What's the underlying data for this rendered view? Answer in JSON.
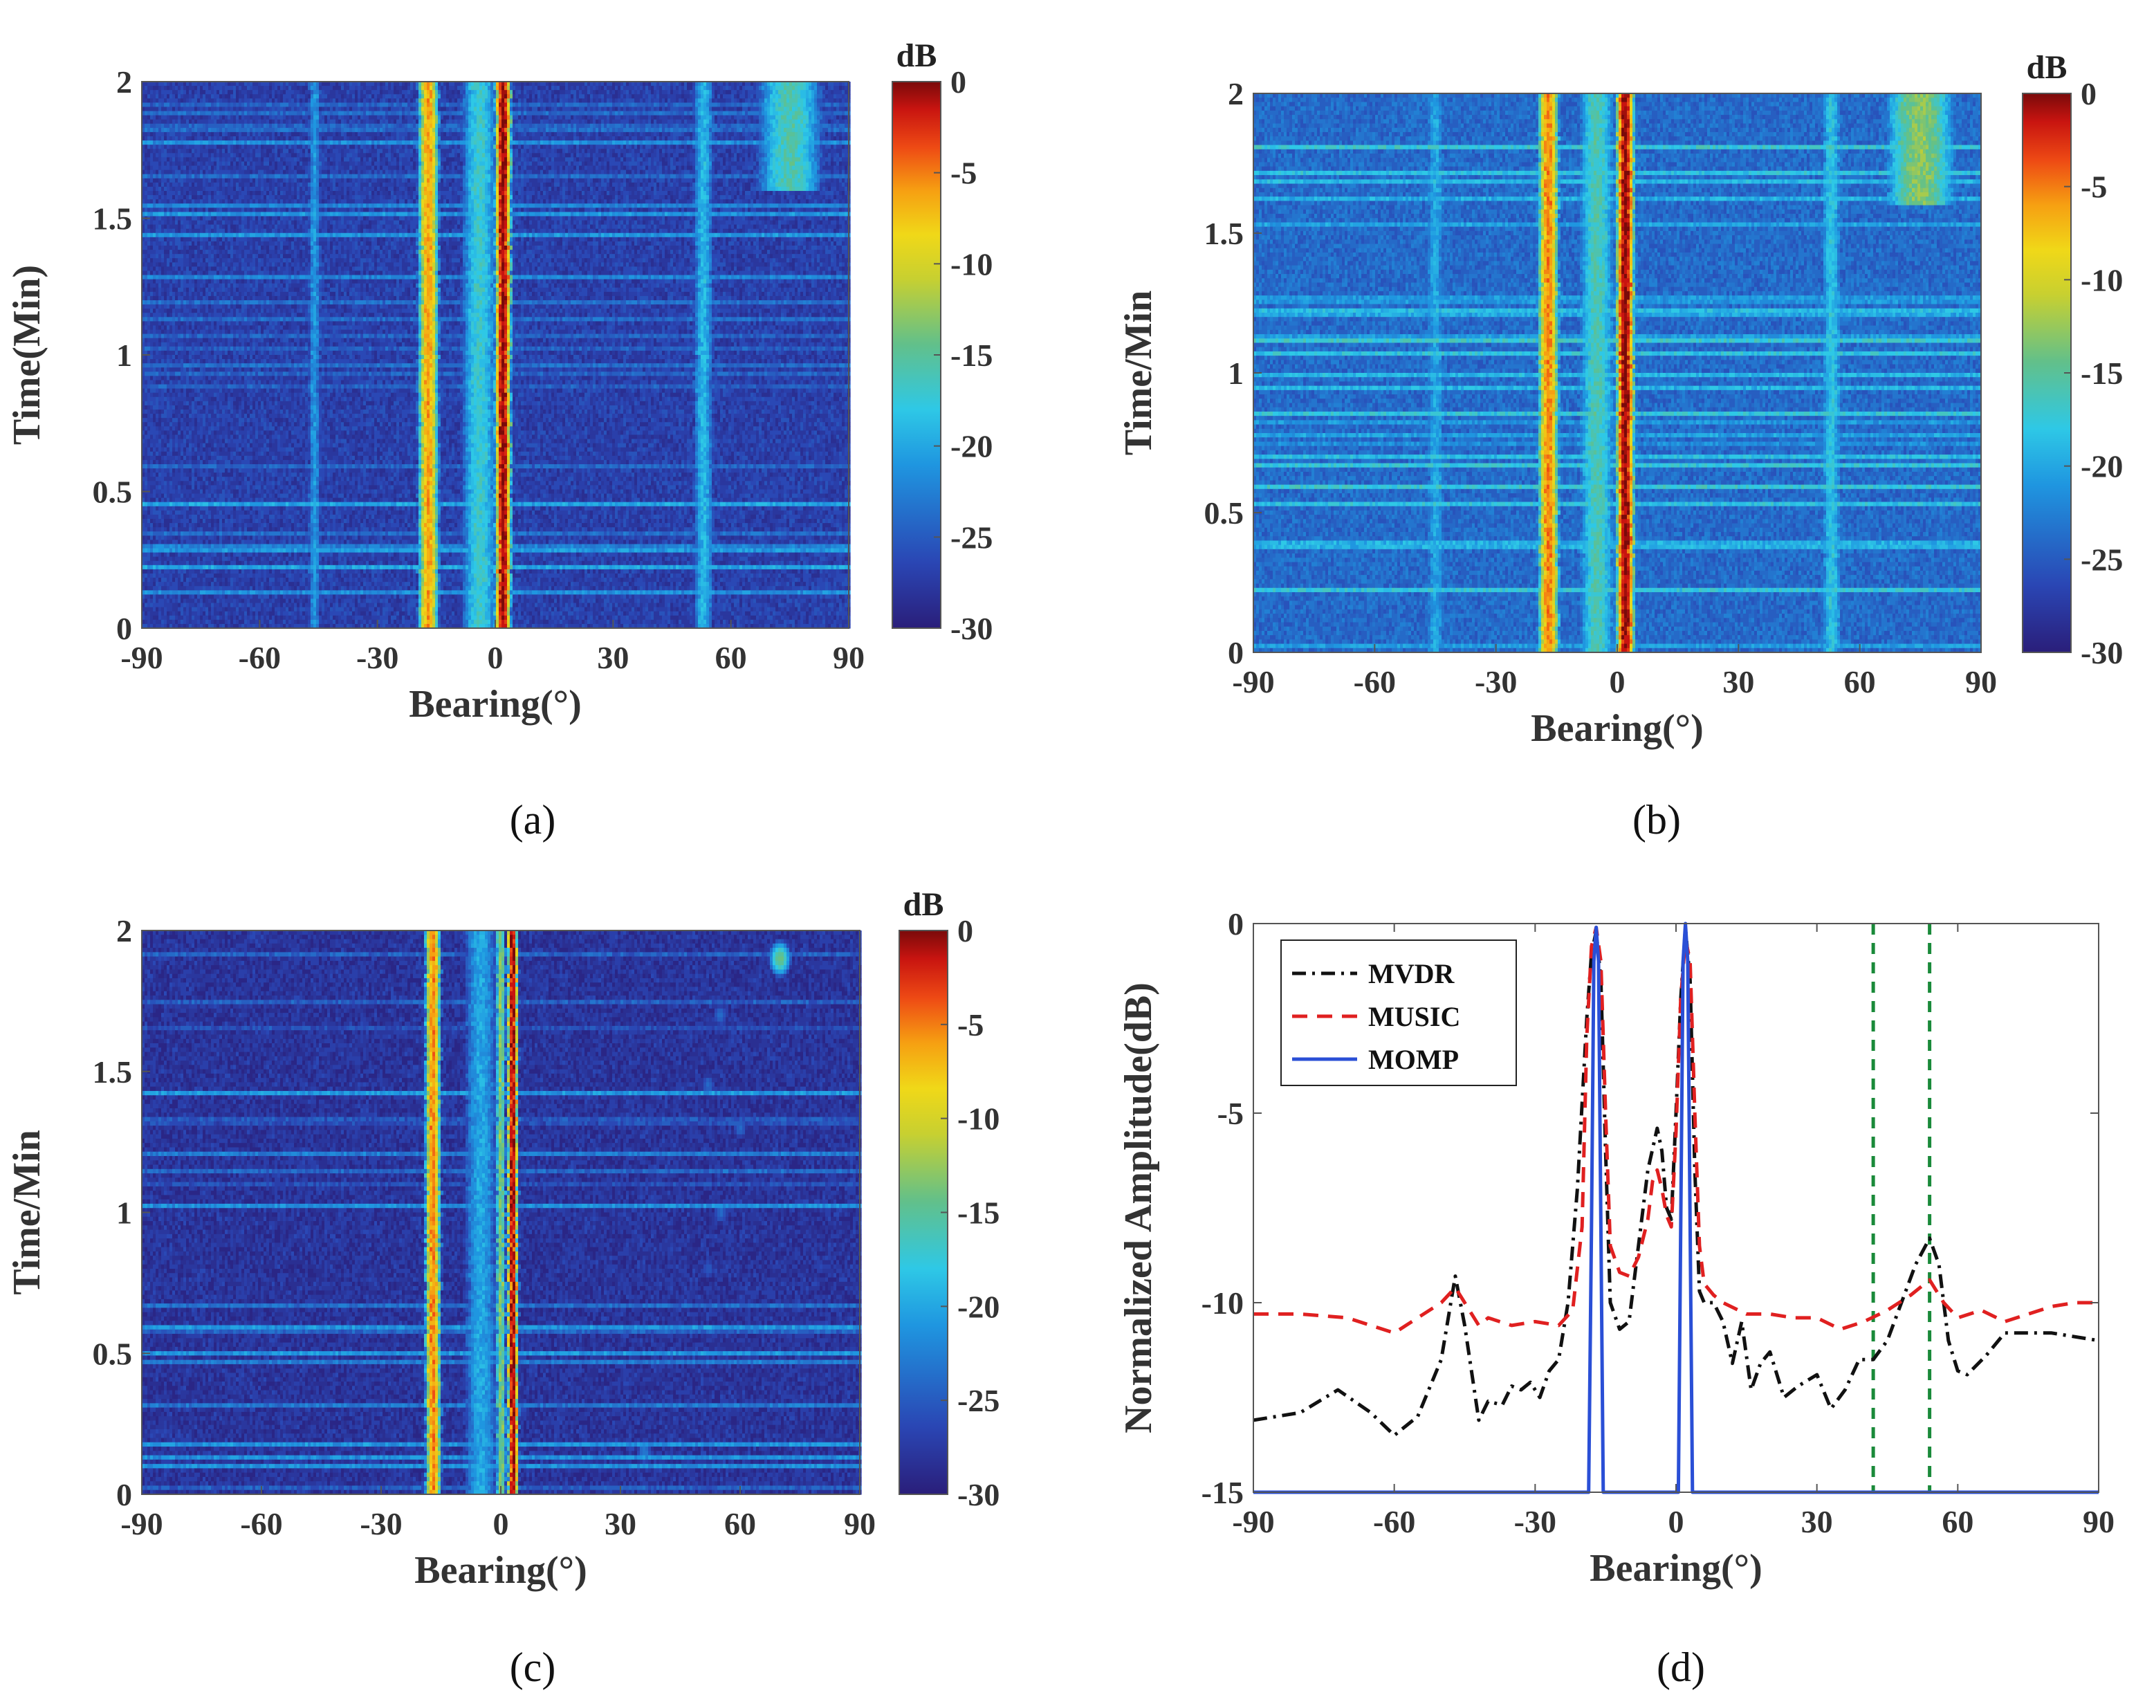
{
  "chart_data": [
    {
      "id": "a",
      "type": "heatmap",
      "caption": "(a)",
      "xlabel": "Bearing(°)",
      "ylabel": "Time(Min)",
      "xlim": [
        -90,
        90
      ],
      "ylim": [
        0,
        2
      ],
      "xticks": [
        "-90",
        "-60",
        "-30",
        "0",
        "30",
        "60",
        "90"
      ],
      "yticks": [
        "0",
        "0.5",
        "1",
        "1.5",
        "2"
      ],
      "colorbar": {
        "title": "dB",
        "range": [
          -30,
          0
        ],
        "ticks": [
          "0",
          "-5",
          "-10",
          "-15",
          "-20",
          "-25",
          "-30"
        ]
      },
      "background_level": -27,
      "ridges": [
        {
          "bearing": 2,
          "level": 0,
          "width": 1.6
        },
        {
          "bearing": -17,
          "level": -6,
          "width": 2.2
        },
        {
          "bearing": -4,
          "level": -17,
          "width": 5
        },
        {
          "bearing": -46,
          "level": -21,
          "width": 2
        },
        {
          "bearing": 53,
          "level": -19,
          "width": 3
        },
        {
          "bearing": 75,
          "level": -16,
          "width": 9,
          "tmin": 1.6
        }
      ]
    },
    {
      "id": "b",
      "type": "heatmap",
      "caption": "(b)",
      "xlabel": "Bearing(°)",
      "ylabel": "Time/Min",
      "xlim": [
        -90,
        90
      ],
      "ylim": [
        0,
        2
      ],
      "xticks": [
        "-90",
        "-60",
        "-30",
        "0",
        "30",
        "60",
        "90"
      ],
      "yticks": [
        "0",
        "0.5",
        "1",
        "1.5",
        "2"
      ],
      "colorbar": {
        "title": "dB",
        "range": [
          -30,
          0
        ],
        "ticks": [
          "0",
          "-5",
          "-10",
          "-15",
          "-20",
          "-25",
          "-30"
        ]
      },
      "background_level": -24,
      "ridges": [
        {
          "bearing": 2,
          "level": 0,
          "width": 1.8
        },
        {
          "bearing": -17,
          "level": -5,
          "width": 2.2
        },
        {
          "bearing": -5,
          "level": -16,
          "width": 5
        },
        {
          "bearing": -45,
          "level": -20,
          "width": 3
        },
        {
          "bearing": 53,
          "level": -18,
          "width": 3
        },
        {
          "bearing": 75,
          "level": -13,
          "width": 9,
          "tmin": 1.6
        }
      ]
    },
    {
      "id": "c",
      "type": "heatmap",
      "caption": "(c)",
      "xlabel": "Bearing(°)",
      "ylabel": "Time/Min",
      "xlim": [
        -90,
        90
      ],
      "ylim": [
        0,
        2
      ],
      "xticks": [
        "-90",
        "-60",
        "-30",
        "0",
        "30",
        "60",
        "90"
      ],
      "yticks": [
        "0",
        "0.5",
        "1",
        "1.5",
        "2"
      ],
      "colorbar": {
        "title": "dB",
        "range": [
          -30,
          0
        ],
        "ticks": [
          "0",
          "-5",
          "-10",
          "-15",
          "-20",
          "-25",
          "-30"
        ]
      },
      "background_level": -28,
      "ridges": [
        {
          "bearing": 3,
          "level": 0,
          "width": 1.0
        },
        {
          "bearing": -17,
          "level": -5,
          "width": 1.6
        },
        {
          "bearing": -5,
          "level": -20,
          "width": 5
        },
        {
          "bearing": 0,
          "level": -13,
          "width": 1.2
        }
      ],
      "blobs": [
        {
          "bearing": 70,
          "time": 1.9,
          "level": -14
        },
        {
          "bearing": 55,
          "time": 1.7,
          "level": -24
        },
        {
          "bearing": 52,
          "time": 1.45,
          "level": -24
        },
        {
          "bearing": 55,
          "time": 1.0,
          "level": -24
        },
        {
          "bearing": 36,
          "time": 0.15,
          "level": -23
        },
        {
          "bearing": 52,
          "time": 0.8,
          "level": -25
        },
        {
          "bearing": 60,
          "time": 1.3,
          "level": -24
        }
      ]
    },
    {
      "id": "d",
      "type": "line",
      "caption": "(d)",
      "xlabel": "Bearing(°)",
      "ylabel": "Normalized Amplitude(dB)",
      "xlim": [
        -90,
        90
      ],
      "ylim": [
        -15,
        0
      ],
      "xticks": [
        "-90",
        "-60",
        "-30",
        "0",
        "30",
        "60",
        "90"
      ],
      "yticks": [
        "0",
        "-5",
        "-10",
        "-15"
      ],
      "legend_position": "top-left",
      "series": [
        {
          "name": "MVDR",
          "color": "#111111",
          "style": "dashdot",
          "x": [
            -90,
            -80,
            -72,
            -65,
            -60,
            -55,
            -50,
            -47,
            -45,
            -42,
            -40,
            -37,
            -35,
            -33,
            -31,
            -29,
            -27,
            -25,
            -23,
            -21,
            -19,
            -18,
            -17,
            -16,
            -15,
            -14,
            -12,
            -10,
            -8,
            -6,
            -4,
            -3,
            -2,
            -1,
            0,
            1,
            2,
            3,
            4,
            5,
            6,
            8,
            10,
            12,
            14,
            16,
            18,
            20,
            23,
            26,
            30,
            33,
            36,
            39,
            42,
            45,
            48,
            51,
            54,
            56,
            58,
            60,
            62,
            66,
            70,
            80,
            90
          ],
          "y": [
            -13.1,
            -12.9,
            -12.3,
            -12.9,
            -13.5,
            -13.0,
            -11.5,
            -9.3,
            -10.6,
            -13.1,
            -12.6,
            -12.7,
            -12.2,
            -12.3,
            -12.1,
            -12.5,
            -11.8,
            -11.5,
            -10.0,
            -7.0,
            -2.5,
            -0.8,
            -0.2,
            -1.5,
            -6.0,
            -10.0,
            -10.7,
            -10.5,
            -8.5,
            -6.5,
            -5.4,
            -6.0,
            -7.5,
            -7.8,
            -5.0,
            -2.0,
            -0.1,
            -1.5,
            -6.5,
            -9.7,
            -10.0,
            -10.0,
            -10.5,
            -11.6,
            -10.5,
            -12.3,
            -11.6,
            -11.3,
            -12.5,
            -12.2,
            -11.9,
            -12.8,
            -12.3,
            -11.5,
            -11.5,
            -11.0,
            -10.0,
            -9.0,
            -8.3,
            -9.0,
            -11.0,
            -11.8,
            -11.9,
            -11.4,
            -10.8,
            -10.8,
            -11.0
          ]
        },
        {
          "name": "MUSIC",
          "color": "#e02020",
          "style": "dashed",
          "x": [
            -90,
            -80,
            -70,
            -60,
            -55,
            -50,
            -47,
            -45,
            -42,
            -40,
            -35,
            -30,
            -25,
            -22,
            -20,
            -19,
            -18,
            -17,
            -16,
            -15,
            -14,
            -12,
            -10,
            -8,
            -6,
            -5,
            -4,
            -3,
            -2,
            -1,
            0,
            1,
            2,
            3,
            4,
            5,
            6,
            8,
            10,
            15,
            20,
            25,
            30,
            35,
            40,
            45,
            50,
            54,
            57,
            60,
            65,
            70,
            75,
            80,
            85,
            90
          ],
          "y": [
            -10.3,
            -10.3,
            -10.4,
            -10.8,
            -10.4,
            -10.0,
            -9.6,
            -10.0,
            -10.6,
            -10.4,
            -10.6,
            -10.5,
            -10.6,
            -10.2,
            -8.0,
            -3.0,
            -0.6,
            -0.1,
            -1.0,
            -5.0,
            -8.5,
            -9.2,
            -9.3,
            -8.8,
            -7.8,
            -6.8,
            -6.5,
            -7.0,
            -7.7,
            -8.0,
            -5.5,
            -2.0,
            -0.4,
            -1.0,
            -5.0,
            -8.5,
            -9.5,
            -9.8,
            -10.0,
            -10.3,
            -10.3,
            -10.4,
            -10.4,
            -10.7,
            -10.5,
            -10.2,
            -9.8,
            -9.4,
            -10.0,
            -10.4,
            -10.2,
            -10.5,
            -10.3,
            -10.1,
            -10.0,
            -10.0
          ]
        },
        {
          "name": "MOMP",
          "color": "#2a4fd6",
          "style": "solid",
          "x": [
            -90,
            -19.1,
            -18.6,
            -18.0,
            -17.5,
            -17.0,
            -16.5,
            -16.0,
            -15.5,
            -15.0,
            0.0,
            0.5,
            1.0,
            1.5,
            2.0,
            2.5,
            3.0,
            3.5,
            4.0,
            90
          ],
          "y": [
            -15.5,
            -15.5,
            -15.0,
            -8.0,
            -1.0,
            -0.1,
            -1.0,
            -8.0,
            -15.0,
            -15.5,
            -15.5,
            -15.0,
            -8.0,
            -1.0,
            0.0,
            -1.0,
            -8.0,
            -15.0,
            -15.5,
            -15.5
          ]
        }
      ],
      "vlines": [
        {
          "x": 42,
          "color": "#1a8a3a"
        },
        {
          "x": 54,
          "color": "#1a8a3a"
        }
      ]
    }
  ]
}
